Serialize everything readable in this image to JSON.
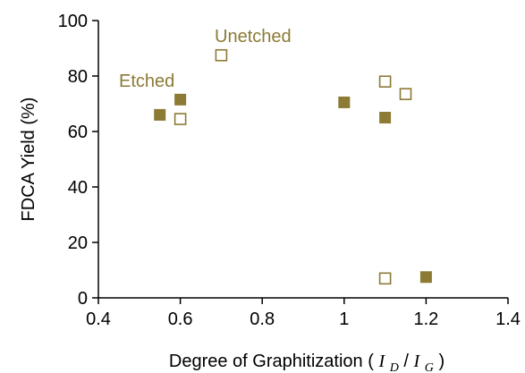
{
  "chart_data": {
    "type": "scatter",
    "title": "",
    "xlabel": "Degree of Graphitization",
    "xlabel_ratio_num": "I",
    "xlabel_ratio_num_sub": "D",
    "xlabel_ratio_den": "I",
    "xlabel_ratio_den_sub": "G",
    "ylabel": "FDCA Yield (%)",
    "xlim": [
      0.4,
      1.4
    ],
    "ylim": [
      0,
      100
    ],
    "xticks": [
      "0.4",
      "0.6",
      "0.8",
      "1",
      "1.2",
      "1.4"
    ],
    "yticks": [
      "0",
      "20",
      "40",
      "60",
      "80",
      "100"
    ],
    "grid": false,
    "series": [
      {
        "name": "Etched",
        "marker": "filled-square",
        "color": "#8c7a35",
        "points": [
          {
            "x": 0.55,
            "y": 66
          },
          {
            "x": 0.6,
            "y": 71.5
          },
          {
            "x": 1.0,
            "y": 70.5
          },
          {
            "x": 1.1,
            "y": 65
          },
          {
            "x": 1.2,
            "y": 7.5
          }
        ]
      },
      {
        "name": "Unetched",
        "marker": "open-square",
        "color": "#8c7a35",
        "points": [
          {
            "x": 0.6,
            "y": 64.5
          },
          {
            "x": 0.7,
            "y": 87.5
          },
          {
            "x": 1.1,
            "y": 78
          },
          {
            "x": 1.15,
            "y": 73.5
          },
          {
            "x": 1.1,
            "y": 7
          }
        ]
      }
    ]
  }
}
